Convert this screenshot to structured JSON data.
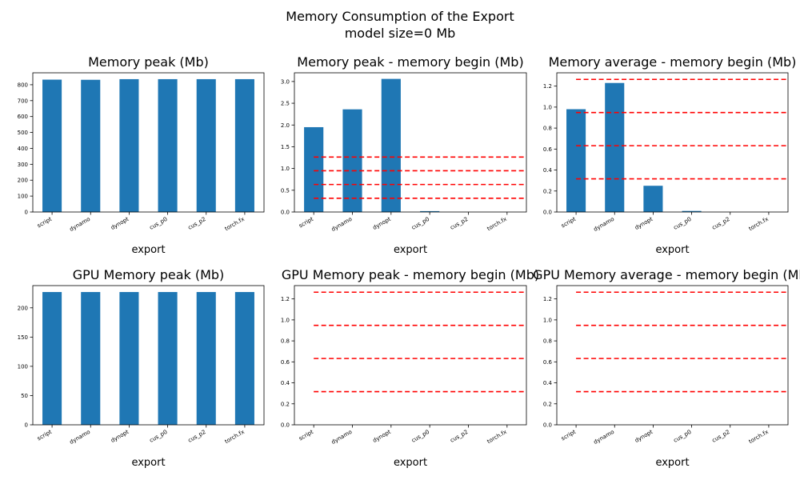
{
  "figure": {
    "title_line1": "Memory Consumption of the Export",
    "title_line2": "model size=0 Mb"
  },
  "chart_data": [
    {
      "type": "bar",
      "title": "Memory peak (Mb)",
      "xlabel": "export",
      "categories": [
        "script",
        "dynamo",
        "dynopt",
        "cus_p0",
        "cus_p2",
        "torch.fx"
      ],
      "values": [
        832,
        831,
        835,
        835,
        835,
        835
      ],
      "ylim": [
        0,
        875
      ],
      "yticks": [
        0,
        100,
        200,
        300,
        400,
        500,
        600,
        700,
        800
      ],
      "ref_lines": [],
      "bar_color": "#1f77b4",
      "ref_color": "#ff0000"
    },
    {
      "type": "bar",
      "title": "Memory peak - memory begin (Mb)",
      "xlabel": "export",
      "categories": [
        "script",
        "dynamo",
        "dynopt",
        "cus_p0",
        "cus_p2",
        "torch.fx"
      ],
      "values": [
        1.95,
        2.36,
        3.06,
        0.02,
        0.0,
        0.0
      ],
      "ylim": [
        0,
        3.2
      ],
      "yticks": [
        0.0,
        0.5,
        1.0,
        1.5,
        2.0,
        2.5,
        3.0
      ],
      "ref_lines": [
        0.316,
        0.632,
        0.948,
        1.264
      ],
      "bar_color": "#1f77b4",
      "ref_color": "#ff0000"
    },
    {
      "type": "bar",
      "title": "Memory average - memory begin (Mb)",
      "xlabel": "export",
      "categories": [
        "script",
        "dynamo",
        "dynopt",
        "cus_p0",
        "cus_p2",
        "torch.fx"
      ],
      "values": [
        0.98,
        1.23,
        0.25,
        0.01,
        0.0,
        0.0
      ],
      "ylim": [
        0,
        1.327
      ],
      "yticks": [
        0.0,
        0.2,
        0.4,
        0.6,
        0.8,
        1.0,
        1.2
      ],
      "ref_lines": [
        0.316,
        0.632,
        0.948,
        1.264
      ],
      "bar_color": "#1f77b4",
      "ref_color": "#ff0000"
    },
    {
      "type": "bar",
      "title": "GPU Memory peak (Mb)",
      "xlabel": "export",
      "categories": [
        "script",
        "dynamo",
        "dynopt",
        "cus_p0",
        "cus_p2",
        "torch.fx"
      ],
      "values": [
        227,
        227,
        227,
        227,
        227,
        227
      ],
      "ylim": [
        0,
        238
      ],
      "yticks": [
        0,
        50,
        100,
        150,
        200
      ],
      "ref_lines": [],
      "bar_color": "#1f77b4",
      "ref_color": "#ff0000"
    },
    {
      "type": "bar",
      "title": "GPU Memory peak - memory begin (Mb)",
      "xlabel": "export",
      "categories": [
        "script",
        "dynamo",
        "dynopt",
        "cus_p0",
        "cus_p2",
        "torch.fx"
      ],
      "values": [
        0,
        0,
        0,
        0,
        0,
        0
      ],
      "ylim": [
        0,
        1.327
      ],
      "yticks": [
        0.0,
        0.2,
        0.4,
        0.6,
        0.8,
        1.0,
        1.2
      ],
      "ref_lines": [
        0.316,
        0.632,
        0.948,
        1.264
      ],
      "bar_color": "#1f77b4",
      "ref_color": "#ff0000"
    },
    {
      "type": "bar",
      "title": "GPU Memory average - memory begin (Mb)",
      "xlabel": "export",
      "categories": [
        "script",
        "dynamo",
        "dynopt",
        "cus_p0",
        "cus_p2",
        "torch.fx"
      ],
      "values": [
        0,
        0,
        0,
        0,
        0,
        0
      ],
      "ylim": [
        0,
        1.327
      ],
      "yticks": [
        0.0,
        0.2,
        0.4,
        0.6,
        0.8,
        1.0,
        1.2
      ],
      "ref_lines": [
        0.316,
        0.632,
        0.948,
        1.264
      ],
      "bar_color": "#1f77b4",
      "ref_color": "#ff0000"
    }
  ]
}
